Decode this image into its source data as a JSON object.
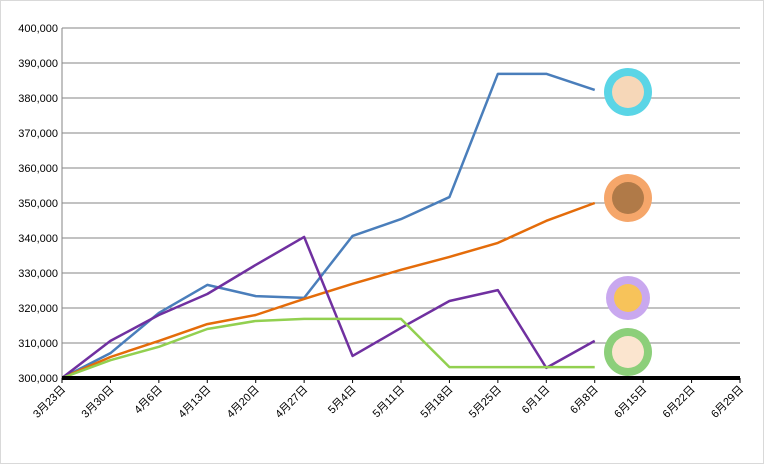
{
  "chart_data": {
    "type": "line",
    "categories": [
      "3月23日",
      "3月30日",
      "4月6日",
      "4月13日",
      "4月20日",
      "4月27日",
      "5月4日",
      "5月11日",
      "5月18日",
      "5月25日",
      "6月1日",
      "6月8日",
      "6月15日",
      "6月22日",
      "6月29日"
    ],
    "series": [
      {
        "color": "#4a7ebb",
        "values": [
          300000,
          307100,
          318600,
          326600,
          323400,
          322900,
          340600,
          345400,
          351700,
          386900,
          386900,
          382300,
          null,
          null,
          null
        ]
      },
      {
        "color": "#e46c0a",
        "values": [
          300000,
          306000,
          310600,
          315400,
          318000,
          322600,
          326900,
          330900,
          334600,
          338600,
          344900,
          350000,
          null,
          null,
          null
        ]
      },
      {
        "color": "#7030a0",
        "values": [
          300000,
          310600,
          318000,
          324000,
          332300,
          340300,
          306300,
          314300,
          322000,
          325100,
          302900,
          310600,
          null,
          null,
          null
        ]
      },
      {
        "color": "#92d050",
        "values": [
          300000,
          305100,
          308900,
          314000,
          316300,
          316900,
          316900,
          316900,
          303100,
          303100,
          303100,
          303100,
          null,
          null,
          null
        ]
      }
    ],
    "ylim": [
      300000,
      400000
    ],
    "yticks": [
      {
        "value": 300000,
        "label": "300,000"
      },
      {
        "value": 310000,
        "label": "310,000"
      },
      {
        "value": 320000,
        "label": "320,000"
      },
      {
        "value": 330000,
        "label": "330,000"
      },
      {
        "value": 340000,
        "label": "340,000"
      },
      {
        "value": 350000,
        "label": "350,000"
      },
      {
        "value": 360000,
        "label": "360,000"
      },
      {
        "value": 370000,
        "label": "370,000"
      },
      {
        "value": 380000,
        "label": "380,000"
      },
      {
        "value": 390000,
        "label": "390,000"
      },
      {
        "value": 400000,
        "label": "400,000"
      }
    ],
    "grid": true
  }
}
